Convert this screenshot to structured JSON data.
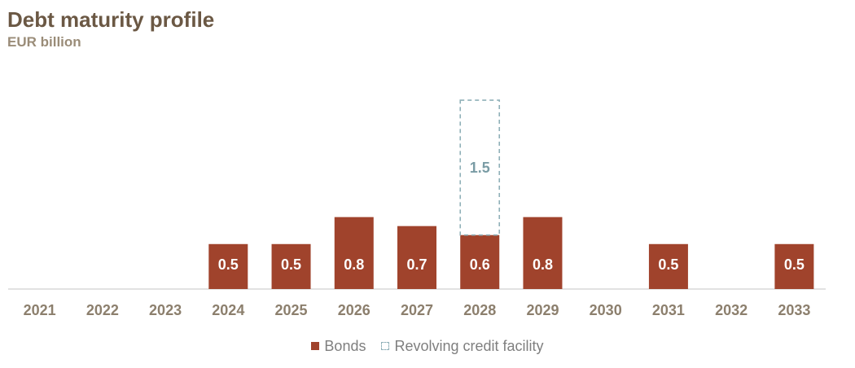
{
  "chart_data": {
    "type": "bar",
    "title": "Debt maturity profile",
    "subtitle": "EUR billion",
    "categories": [
      "2021",
      "2022",
      "2023",
      "2024",
      "2025",
      "2026",
      "2027",
      "2028",
      "2029",
      "2030",
      "2031",
      "2032",
      "2033"
    ],
    "series": [
      {
        "name": "Bonds",
        "values": [
          null,
          null,
          null,
          0.5,
          0.5,
          0.8,
          0.7,
          0.6,
          0.8,
          null,
          0.5,
          null,
          0.5
        ],
        "color": "#a0432c"
      },
      {
        "name": "Revolving credit facility",
        "values": [
          null,
          null,
          null,
          null,
          null,
          null,
          null,
          1.5,
          null,
          null,
          null,
          null,
          null
        ],
        "color": "#8fb0b8",
        "style": "dashed-outline",
        "stacked_on": "Bonds"
      }
    ],
    "value_labels": {
      "Bonds": [
        "",
        "",
        "",
        "0.5",
        "0.5",
        "0.8",
        "0.7",
        "0.6",
        "0.8",
        "",
        "0.5",
        "",
        "0.5"
      ],
      "Revolving credit facility": [
        "",
        "",
        "",
        "",
        "",
        "",
        "",
        "1.5",
        "",
        "",
        "",
        "",
        ""
      ]
    },
    "ylim": [
      0,
      2.2
    ],
    "legend_position": "bottom-center",
    "grid": false,
    "colors": {
      "axis": "#d9d9d9",
      "tick_text": "#8c7f6d",
      "bar_text": "#ffffff",
      "rcf_text": "#7a9ca5"
    }
  },
  "legend": {
    "bonds_label": "Bonds",
    "rcf_label": "Revolving credit facility"
  }
}
